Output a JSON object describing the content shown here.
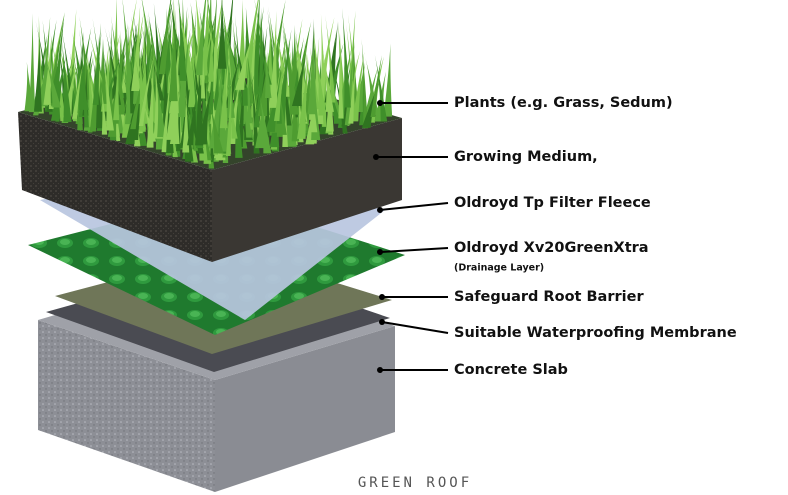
{
  "labels": [
    {
      "text": "Plants (e.g. Grass, Sedum)"
    },
    {
      "text": "Growing Medium,"
    },
    {
      "text": "Oldroyd Tp Filter Fleece"
    },
    {
      "text": "Oldroyd Xv20GreenXtra",
      "note": "(Drainage Layer)"
    },
    {
      "text": "Safeguard Root Barrier"
    },
    {
      "text": "Suitable Waterproofing Membrane"
    },
    {
      "text": "Concrete Slab"
    }
  ],
  "caption": "GREEN ROOF"
}
